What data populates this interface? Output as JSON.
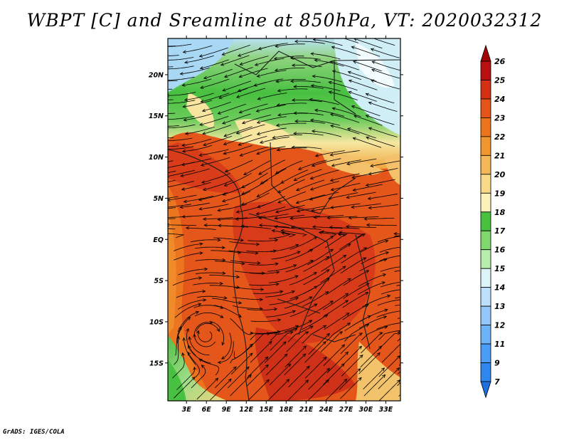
{
  "title": "WBPT [C] and Sreamline at 850hPa, VT: 2020032312",
  "credit": "GrADS: IGES/COLA",
  "map": {
    "lat_labels": [
      "20N",
      "15N",
      "10N",
      "5N",
      "EQ",
      "5S",
      "10S",
      "15S"
    ],
    "lat_values": [
      20,
      15,
      10,
      5,
      0,
      -5,
      -10,
      -15
    ],
    "lon_labels": [
      "3E",
      "6E",
      "9E",
      "12E",
      "15E",
      "18E",
      "21E",
      "24E",
      "27E",
      "30E",
      "33E"
    ],
    "lon_values": [
      3,
      6,
      9,
      12,
      15,
      18,
      21,
      24,
      27,
      30,
      33
    ],
    "lon_range": [
      0.2,
      35.2
    ],
    "lat_range": [
      -19.6,
      24.4
    ],
    "field": "WBPT [C]",
    "level": "850hPa",
    "valid_time": "2020032312"
  },
  "colorbar": {
    "labels": [
      "7",
      "9",
      "11",
      "12",
      "13",
      "14",
      "15",
      "16",
      "17",
      "18",
      "19",
      "20",
      "21",
      "22",
      "23",
      "24",
      "25",
      "26"
    ],
    "colors": [
      "#1e6fe0",
      "#2f86ee",
      "#4a9cf6",
      "#6eb2f8",
      "#93c8fa",
      "#bde0fc",
      "#dcf3f8",
      "#b7ecaa",
      "#7fd76e",
      "#48c040",
      "#fbf2b8",
      "#f8da88",
      "#f4b85a",
      "#f0962e",
      "#ec741c",
      "#e45318",
      "#d43014",
      "#b81010",
      "#a00606"
    ]
  }
}
